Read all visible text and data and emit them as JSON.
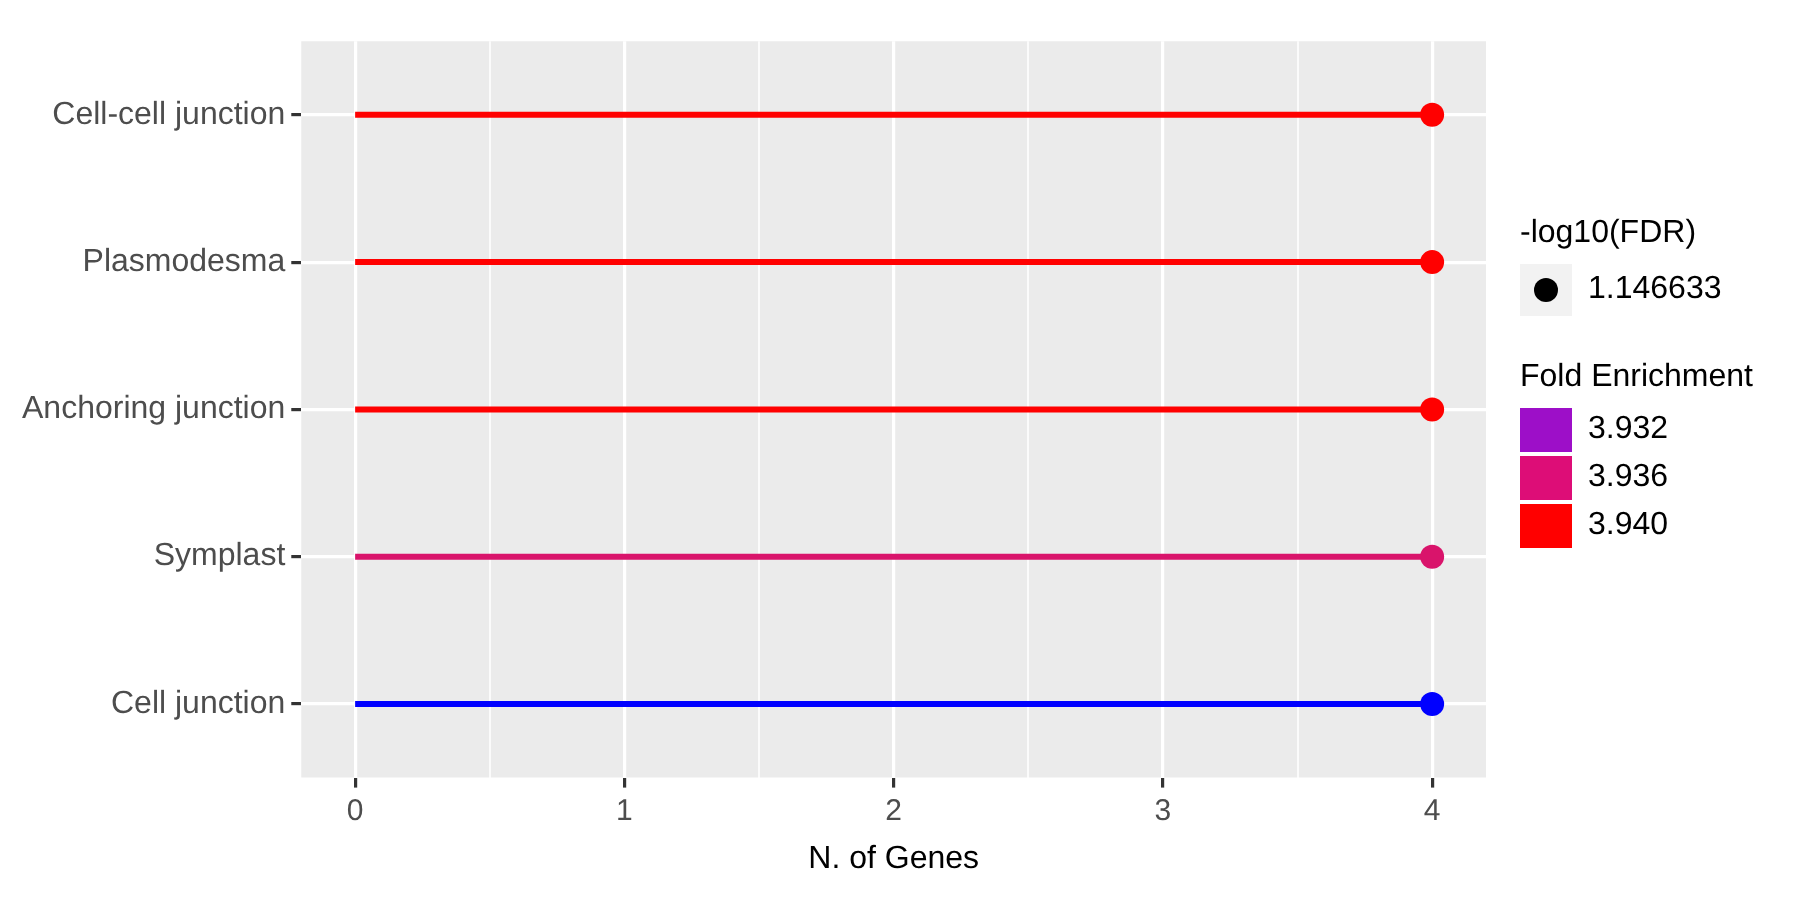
{
  "chart_data": {
    "type": "lollipop",
    "orientation": "horizontal",
    "xlabel": "N. of Genes",
    "categories": [
      "Cell-cell junction",
      "Plasmodesma",
      "Anchoring junction",
      "Symplast",
      "Cell junction"
    ],
    "series": [
      {
        "values": [
          4,
          4,
          4,
          4,
          4
        ],
        "colors": [
          "#ff0000",
          "#ff0000",
          "#ff0000",
          "#d9146b",
          "#0000ff"
        ]
      },
      {
        "name": "3.932",
        "color": "#9d0fc8",
        "values": [
          null,
          null,
          null,
          null,
          null
        ]
      },
      {
        "name": "3.936",
        "color": "#dd0d77",
        "values": [
          null,
          null,
          null,
          null,
          null
        ]
      },
      {
        "name": "3.940",
        "color": "#ff0000",
        "values": [
          null,
          null,
          null,
          null,
          null
        ]
      }
    ],
    "legend_title": "Fold Enrichment",
    "annotations": [
      "-log10(FDR)",
      "1.146633"
    ],
    "xlim": [
      -0.2,
      4.2
    ],
    "xticks": [
      0,
      {
        "value": 0.5,
        "label": null
      },
      1,
      {
        "value": 1.5,
        "label": null
      },
      2,
      {
        "value": 2.5,
        "label": null
      },
      3,
      {
        "value": 3.5,
        "label": null
      },
      4
    ],
    "grid": true,
    "legend": "right"
  }
}
